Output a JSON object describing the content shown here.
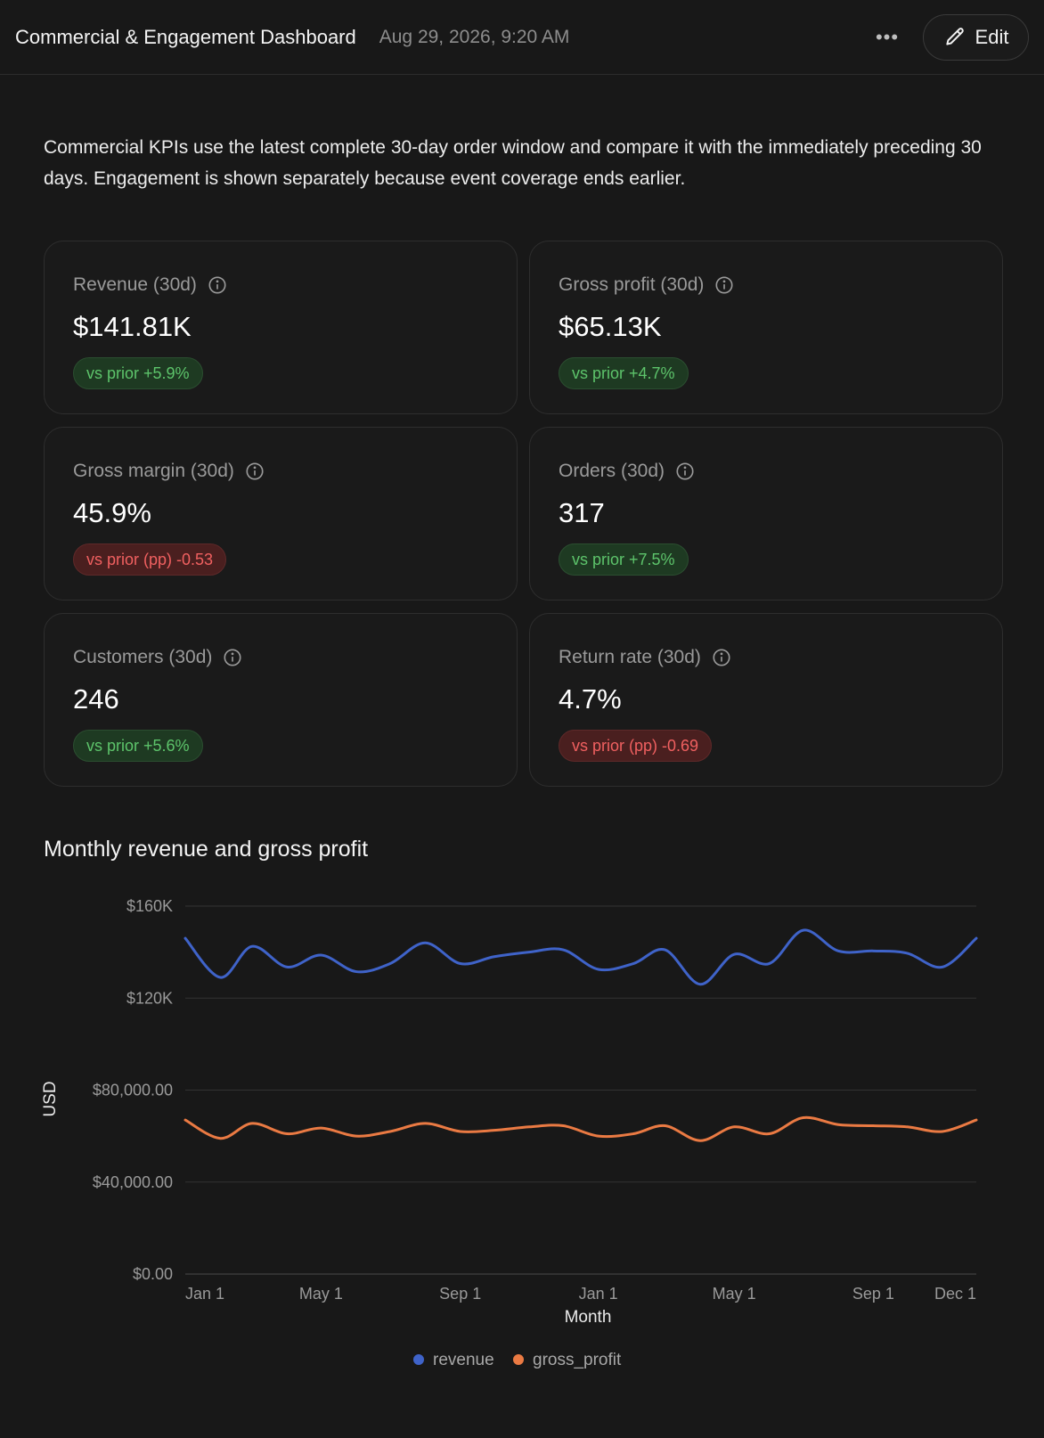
{
  "header": {
    "title": "Commercial & Engagement Dashboard",
    "timestamp": "Aug 29, 2026, 9:20 AM",
    "more_label": "•••",
    "edit_label": "Edit"
  },
  "intro": "Commercial KPIs use the latest complete 30-day order window and compare it with the immediately preceding 30 days. Engagement is shown separately because event coverage ends earlier.",
  "kpis": [
    {
      "label": "Revenue (30d)",
      "value": "$141.81K",
      "delta": "vs prior +5.9%",
      "trend": "pos"
    },
    {
      "label": "Gross profit (30d)",
      "value": "$65.13K",
      "delta": "vs prior +4.7%",
      "trend": "pos"
    },
    {
      "label": "Gross margin (30d)",
      "value": "45.9%",
      "delta": "vs prior (pp) -0.53",
      "trend": "neg"
    },
    {
      "label": "Orders (30d)",
      "value": "317",
      "delta": "vs prior +7.5%",
      "trend": "pos"
    },
    {
      "label": "Customers (30d)",
      "value": "246",
      "delta": "vs prior +5.6%",
      "trend": "pos"
    },
    {
      "label": "Return rate (30d)",
      "value": "4.7%",
      "delta": "vs prior (pp) -0.69",
      "trend": "neg"
    }
  ],
  "colors": {
    "revenue": "#3f63c9",
    "gross_profit": "#ea7a43",
    "positive": "#5dc46b",
    "negative": "#f06060"
  },
  "chart_data": {
    "type": "line",
    "title": "Monthly revenue and gross profit",
    "xlabel": "Month",
    "ylabel": "USD",
    "ylim": [
      0,
      160000
    ],
    "y_ticks": [
      0,
      40000,
      80000,
      120000,
      160000
    ],
    "y_tick_labels": [
      "$0.00",
      "$40,000.00",
      "$80,000.00",
      "$120K",
      "$160K"
    ],
    "x_range": [
      "2025-01-01",
      "2026-12-01"
    ],
    "x_ticks": [
      "2025-01-01",
      "2025-05-01",
      "2025-09-01",
      "2026-01-01",
      "2026-05-01",
      "2026-09-01",
      "2026-12-01"
    ],
    "x_tick_labels": [
      "Jan 1",
      "May 1",
      "Sep 1",
      "Jan 1",
      "May 1",
      "Sep 1",
      "Dec 1"
    ],
    "grid": true,
    "legend": "bottom-center",
    "x": [
      "2025-01-01",
      "2025-02-01",
      "2025-03-01",
      "2025-04-01",
      "2025-05-01",
      "2025-06-01",
      "2025-07-01",
      "2025-08-01",
      "2025-09-01",
      "2025-10-01",
      "2025-11-01",
      "2025-12-01",
      "2026-01-01",
      "2026-02-01",
      "2026-03-01",
      "2026-04-01",
      "2026-05-01",
      "2026-06-01",
      "2026-07-01",
      "2026-08-01",
      "2026-09-01",
      "2026-10-01",
      "2026-11-01",
      "2026-12-01"
    ],
    "series": [
      {
        "name": "revenue",
        "values": [
          146000,
          129000,
          142500,
          133500,
          138700,
          131500,
          135000,
          144000,
          135000,
          138000,
          140000,
          141000,
          132500,
          135000,
          141000,
          126000,
          139000,
          135000,
          149500,
          140500,
          140500,
          139500,
          133500,
          146000
        ]
      },
      {
        "name": "gross_profit",
        "values": [
          67000,
          59000,
          65500,
          61000,
          63500,
          60000,
          62000,
          65500,
          62000,
          62500,
          64000,
          64500,
          60000,
          61000,
          64500,
          58000,
          64000,
          61000,
          68000,
          65000,
          64500,
          64000,
          62000,
          67000
        ]
      }
    ]
  }
}
